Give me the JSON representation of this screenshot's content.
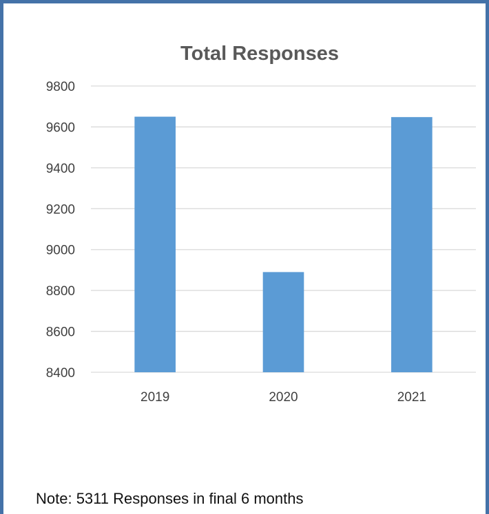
{
  "chart_data": {
    "type": "bar",
    "title": "Total Responses",
    "categories": [
      "2019",
      "2020",
      "2021"
    ],
    "values": [
      9650,
      8890,
      9648
    ],
    "ylim": [
      8400,
      9800
    ],
    "yticks": [
      8400,
      8600,
      8800,
      9000,
      9200,
      9400,
      9600,
      9800
    ],
    "grid": true,
    "bar_color": "#5B9BD5"
  },
  "note": "Note: 5311 Responses in final 6 months"
}
